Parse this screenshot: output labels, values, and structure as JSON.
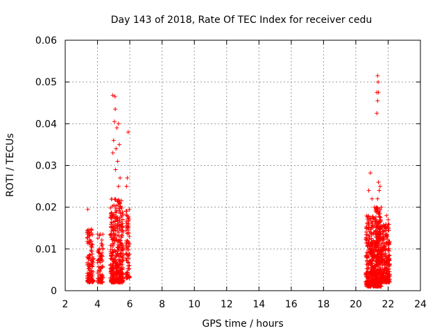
{
  "chart_data": {
    "type": "scatter",
    "title": "Day 143 of 2018, Rate Of TEC Index for receiver cedu",
    "xlabel": "GPS time / hours",
    "ylabel": "ROTI / TECUs",
    "xlim": [
      2,
      24
    ],
    "ylim": [
      0,
      0.06
    ],
    "xticks": [
      2,
      4,
      6,
      8,
      10,
      12,
      14,
      16,
      18,
      20,
      22,
      24
    ],
    "yticks": [
      0,
      0.01,
      0.02,
      0.03,
      0.04,
      0.05,
      0.06
    ],
    "ytick_labels": [
      "0",
      "0.01",
      "0.02",
      "0.03",
      "0.04",
      "0.05",
      "0.06"
    ],
    "grid": true,
    "marker": "+",
    "color": "#ff0000",
    "series": [
      {
        "name": "ROTI",
        "clusters": [
          {
            "x": [
              3.35,
              3.75
            ],
            "count": 120,
            "ymin": 0.002,
            "ymax": 0.015,
            "spikes": [
              [
                3.4,
                0.0195
              ]
            ]
          },
          {
            "x": [
              4.0,
              4.35
            ],
            "count": 80,
            "ymin": 0.002,
            "ymax": 0.014,
            "spikes": []
          },
          {
            "x": [
              4.8,
              5.6
            ],
            "count": 420,
            "ymin": 0.002,
            "ymax": 0.022,
            "spikes": [
              [
                4.95,
                0.0468
              ],
              [
                5.08,
                0.0465
              ],
              [
                5.1,
                0.0435
              ],
              [
                5.05,
                0.0405
              ],
              [
                5.2,
                0.039
              ],
              [
                5.3,
                0.04
              ],
              [
                5.0,
                0.036
              ],
              [
                5.15,
                0.034
              ],
              [
                5.35,
                0.035
              ],
              [
                4.95,
                0.033
              ],
              [
                5.25,
                0.031
              ],
              [
                5.12,
                0.029
              ],
              [
                5.4,
                0.027
              ],
              [
                5.3,
                0.025
              ]
            ]
          },
          {
            "x": [
              5.75,
              6.0
            ],
            "count": 80,
            "ymin": 0.003,
            "ymax": 0.02,
            "spikes": [
              [
                5.9,
                0.038
              ],
              [
                5.85,
                0.027
              ],
              [
                5.8,
                0.025
              ]
            ]
          },
          {
            "x": [
              20.6,
              21.2
            ],
            "count": 300,
            "ymin": 0.001,
            "ymax": 0.018,
            "spikes": [
              [
                20.9,
                0.0282
              ],
              [
                20.8,
                0.024
              ],
              [
                21.0,
                0.022
              ],
              [
                21.15,
                0.02
              ]
            ]
          },
          {
            "x": [
              21.2,
              21.6
            ],
            "count": 300,
            "ymin": 0.001,
            "ymax": 0.02,
            "spikes": [
              [
                21.35,
                0.0515
              ],
              [
                21.38,
                0.05
              ],
              [
                21.3,
                0.0475
              ],
              [
                21.4,
                0.0475
              ],
              [
                21.35,
                0.0455
              ],
              [
                21.3,
                0.0425
              ],
              [
                21.4,
                0.026
              ],
              [
                21.5,
                0.025
              ],
              [
                21.45,
                0.024
              ],
              [
                21.35,
                0.022
              ]
            ]
          },
          {
            "x": [
              21.6,
              22.1
            ],
            "count": 220,
            "ymin": 0.002,
            "ymax": 0.016,
            "spikes": [
              [
                21.9,
                0.018
              ],
              [
                22.0,
                0.017
              ]
            ]
          }
        ]
      }
    ]
  }
}
